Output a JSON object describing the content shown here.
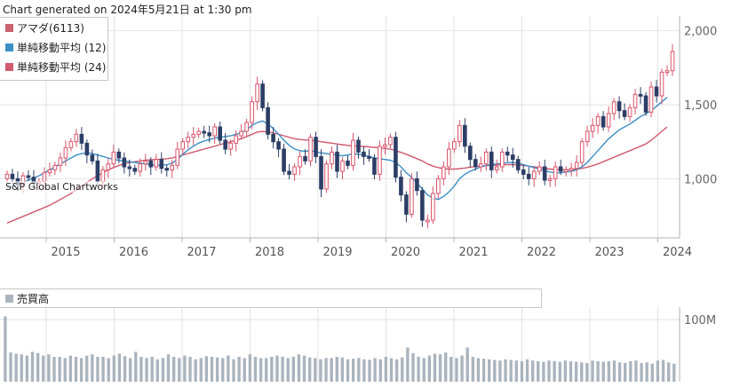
{
  "caption": "Chart generated on 2024年5月21日 at 1:30 pm",
  "legend": [
    {
      "label": "アマダ(6113)",
      "color": "#c9636f"
    },
    {
      "label": "単純移動平均 (12)",
      "color": "#3c8fc7"
    },
    {
      "label": "単純移動平均 (24)",
      "color": "#d05a6e"
    }
  ],
  "watermark": "S&P Global Chartworks",
  "volume_legend": {
    "label": "売買高",
    "color": "#aab4be"
  },
  "colors": {
    "up": "#d9536a",
    "down": "#2c3e66",
    "sma12": "#3c8fc7",
    "sma24": "#d05a6e",
    "volume": "#aab4be",
    "grid": "#e2e2e2"
  },
  "chart_data": [
    {
      "type": "candlestick",
      "x_labels": [
        "2015",
        "2016",
        "2017",
        "2018",
        "2019",
        "2020",
        "2021",
        "2022",
        "2023",
        "2024"
      ],
      "y_ticks": [
        "2,000",
        "1,500",
        "1,000"
      ],
      "ylim": [
        600,
        2100
      ],
      "series": [
        {
          "name": "アマダ(6113)",
          "values": [
            1030,
            1000,
            960,
            1020,
            1010,
            970,
            980,
            1040,
            1060,
            1090,
            1140,
            1210,
            1250,
            1300,
            1240,
            1160,
            1120,
            980,
            1060,
            1100,
            1180,
            1140,
            1080,
            1070,
            1050,
            1100,
            1120,
            1080,
            1130,
            1070,
            1060,
            1090,
            1200,
            1250,
            1280,
            1300,
            1320,
            1310,
            1290,
            1350,
            1260,
            1200,
            1240,
            1290,
            1320,
            1380,
            1520,
            1640,
            1480,
            1300,
            1250,
            1200,
            1050,
            1030,
            1080,
            1150,
            1120,
            1280,
            1150,
            930,
            1100,
            1180,
            1050,
            1120,
            1090,
            1260,
            1180,
            1150,
            1140,
            1030,
            1220,
            1230,
            1280,
            1010,
            890,
            760,
            1000,
            920,
            720,
            720,
            900,
            1000,
            1080,
            1200,
            1250,
            1360,
            1220,
            1130,
            1080,
            1100,
            1180,
            1060,
            1080,
            1180,
            1160,
            1130,
            1060,
            1030,
            1000,
            1050,
            1080,
            990,
            1000,
            1080,
            1050,
            1060,
            1070,
            1110,
            1250,
            1320,
            1360,
            1420,
            1350,
            1440,
            1520,
            1460,
            1420,
            1480,
            1570,
            1560,
            1450,
            1620,
            1560,
            1720,
            1730,
            1860
          ]
        },
        {
          "name": "単純移動平均 (12)",
          "values": [
            940,
            950,
            960,
            975,
            990,
            1005,
            1020,
            1040,
            1060,
            1080,
            1100,
            1120,
            1140,
            1160,
            1170,
            1175,
            1170,
            1160,
            1150,
            1140,
            1130,
            1125,
            1120,
            1115,
            1110,
            1105,
            1100,
            1095,
            1092,
            1090,
            1095,
            1105,
            1130,
            1165,
            1195,
            1220,
            1240,
            1255,
            1265,
            1275,
            1280,
            1285,
            1290,
            1300,
            1310,
            1330,
            1360,
            1380,
            1390,
            1370,
            1340,
            1300,
            1260,
            1225,
            1200,
            1190,
            1185,
            1190,
            1180,
            1175,
            1170,
            1165,
            1160,
            1155,
            1160,
            1170,
            1165,
            1160,
            1150,
            1140,
            1135,
            1130,
            1125,
            1110,
            1080,
            1040,
            1010,
            970,
            930,
            890,
            870,
            860,
            880,
            910,
            950,
            1000,
            1030,
            1050,
            1065,
            1080,
            1090,
            1095,
            1100,
            1105,
            1108,
            1110,
            1105,
            1095,
            1085,
            1075,
            1065,
            1055,
            1045,
            1040,
            1040,
            1045,
            1050,
            1060,
            1080,
            1110,
            1150,
            1190,
            1230,
            1270,
            1300,
            1330,
            1350,
            1370,
            1395,
            1420,
            1440,
            1460,
            1490,
            1520,
            1550
          ]
        },
        {
          "name": "単純移動平均 (24)",
          "values": [
            700,
            715,
            730,
            745,
            760,
            775,
            790,
            805,
            820,
            840,
            860,
            880,
            900,
            925,
            950,
            975,
            1000,
            1020,
            1040,
            1060,
            1075,
            1090,
            1100,
            1110,
            1115,
            1120,
            1125,
            1128,
            1130,
            1132,
            1135,
            1140,
            1150,
            1160,
            1170,
            1180,
            1190,
            1200,
            1210,
            1220,
            1230,
            1240,
            1250,
            1260,
            1270,
            1285,
            1300,
            1315,
            1320,
            1315,
            1310,
            1300,
            1290,
            1280,
            1270,
            1265,
            1262,
            1260,
            1255,
            1250,
            1245,
            1240,
            1235,
            1230,
            1225,
            1222,
            1220,
            1218,
            1215,
            1212,
            1208,
            1205,
            1200,
            1190,
            1178,
            1165,
            1150,
            1135,
            1120,
            1100,
            1085,
            1075,
            1068,
            1065,
            1065,
            1068,
            1072,
            1078,
            1082,
            1085,
            1088,
            1090,
            1092,
            1094,
            1095,
            1095,
            1093,
            1090,
            1085,
            1080,
            1075,
            1070,
            1065,
            1062,
            1060,
            1060,
            1062,
            1065,
            1070,
            1078,
            1088,
            1100,
            1115,
            1130,
            1145,
            1160,
            1175,
            1190,
            1205,
            1220,
            1235,
            1260,
            1290,
            1320,
            1350
          ]
        }
      ]
    },
    {
      "type": "bar",
      "series": [
        {
          "name": "売買高",
          "values": [
            105,
            47,
            45,
            44,
            42,
            48,
            46,
            42,
            44,
            40,
            40,
            38,
            42,
            40,
            38,
            42,
            44,
            40,
            40,
            38,
            42,
            45,
            41,
            38,
            48,
            40,
            38,
            40,
            36,
            38,
            44,
            40,
            38,
            42,
            40,
            36,
            38,
            41,
            40,
            39,
            38,
            42,
            36,
            40,
            38,
            44,
            40,
            38,
            38,
            40,
            42,
            40,
            38,
            40,
            44,
            42,
            39,
            38,
            36,
            38,
            38,
            40,
            39,
            36,
            37,
            38,
            36,
            35,
            38,
            36,
            40,
            38,
            36,
            39,
            55,
            46,
            40,
            38,
            42,
            45,
            44,
            47,
            40,
            38,
            42,
            55,
            40,
            38,
            37,
            36,
            35,
            34,
            36,
            35,
            34,
            33,
            36,
            34,
            33,
            32,
            34,
            33,
            32,
            34,
            33,
            32,
            31,
            30,
            34,
            33,
            32,
            33,
            34,
            31,
            30,
            33,
            34,
            30,
            31,
            29,
            34,
            35,
            31,
            29
          ]
        }
      ],
      "y_ticks": [
        "100M"
      ],
      "ylim": [
        0,
        120
      ]
    }
  ]
}
